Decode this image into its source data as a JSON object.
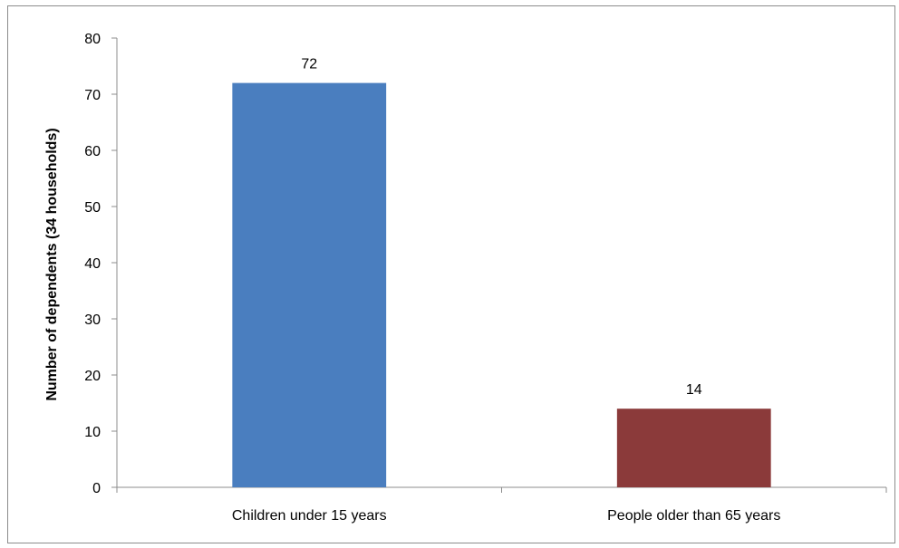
{
  "chart_data": {
    "type": "bar",
    "categories": [
      "Children under 15 years",
      "People older than 65 years"
    ],
    "values": [
      72,
      14
    ],
    "colors": [
      "#4a7ebf",
      "#8b3a3a"
    ],
    "data_labels": [
      "72",
      "14"
    ],
    "ylabel": "Number of dependents (34 households)",
    "xlabel": "",
    "ylim": [
      0,
      80
    ],
    "yticks": [
      0,
      10,
      20,
      30,
      40,
      50,
      60,
      70,
      80
    ],
    "ytick_labels": [
      "0",
      "10",
      "20",
      "30",
      "40",
      "50",
      "60",
      "70",
      "80"
    ],
    "grid": false,
    "legend": "none"
  }
}
